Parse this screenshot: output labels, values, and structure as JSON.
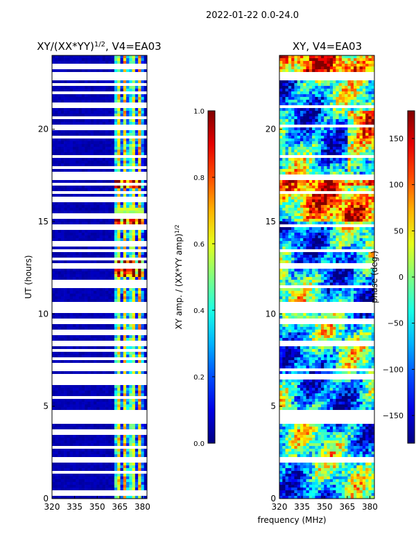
{
  "chart_data": [
    {
      "type": "heatmap",
      "suptitle": "2022-01-22 0.0-24.0",
      "title": "XY/(XX*YY)",
      "title_sup": "1/2",
      "title_suffix": ", V4=EA03",
      "xlabel": "",
      "ylabel": "UT (hours)",
      "xlim": [
        320,
        383
      ],
      "ylim": [
        0,
        24
      ],
      "xticks": [
        320,
        335,
        350,
        365,
        380
      ],
      "yticks": [
        0,
        5,
        10,
        15,
        20
      ],
      "colorbar": {
        "label": "XY amp. / (XX*YY amp)",
        "label_sup": "1/2",
        "range": [
          0.0,
          1.0
        ],
        "ticks": [
          "0.0",
          "0.2",
          "0.4",
          "0.6",
          "0.8",
          "1.0"
        ],
        "tick_values": [
          0.0,
          0.2,
          0.4,
          0.6,
          0.8,
          1.0
        ]
      },
      "background_value": 0.03,
      "flagged_bands_hours": [
        0.3,
        1.4,
        2.0,
        2.2,
        2.8,
        3.6,
        4.2,
        4.5,
        4.7,
        5.5,
        6.3,
        6.6,
        7.0,
        7.2,
        7.6,
        8.0,
        8.4,
        9.0,
        9.6,
        10.2,
        10.5,
        11.5,
        11.6,
        11.8,
        12.6,
        13.0,
        13.4,
        13.8,
        14.6,
        14.8,
        15.3,
        16.2,
        16.6,
        17.0,
        17.4,
        17.6,
        17.9,
        18.5,
        19.6,
        20.0,
        20.2,
        20.6,
        21.2,
        21.4,
        22.0,
        22.4,
        22.8,
        23.0,
        23.4
      ]
    },
    {
      "type": "heatmap",
      "title": "XY, V4=EA03",
      "xlabel": "frequency (MHz)",
      "ylabel": "",
      "xlim": [
        320,
        383
      ],
      "ylim": [
        0,
        24
      ],
      "xticks": [
        320,
        335,
        350,
        365,
        380
      ],
      "yticks": [
        0,
        5,
        10,
        15,
        20
      ],
      "colorbar": {
        "label": "phase (deg.)",
        "range": [
          -180,
          180
        ],
        "ticks": [
          "−150",
          "−100",
          "−50",
          "0",
          "50",
          "100",
          "150"
        ],
        "tick_values": [
          -150,
          -100,
          -50,
          0,
          50,
          100,
          150
        ]
      },
      "flagged_bands_hours": [
        2.0,
        2.2,
        4.2,
        4.5,
        4.7,
        6.6,
        7.0,
        8.4,
        9.6,
        10.2,
        10.5,
        11.5,
        12.6,
        13.4,
        14.8,
        16.6,
        17.4,
        18.5,
        20.2,
        21.2,
        22.8,
        23.0
      ]
    }
  ]
}
